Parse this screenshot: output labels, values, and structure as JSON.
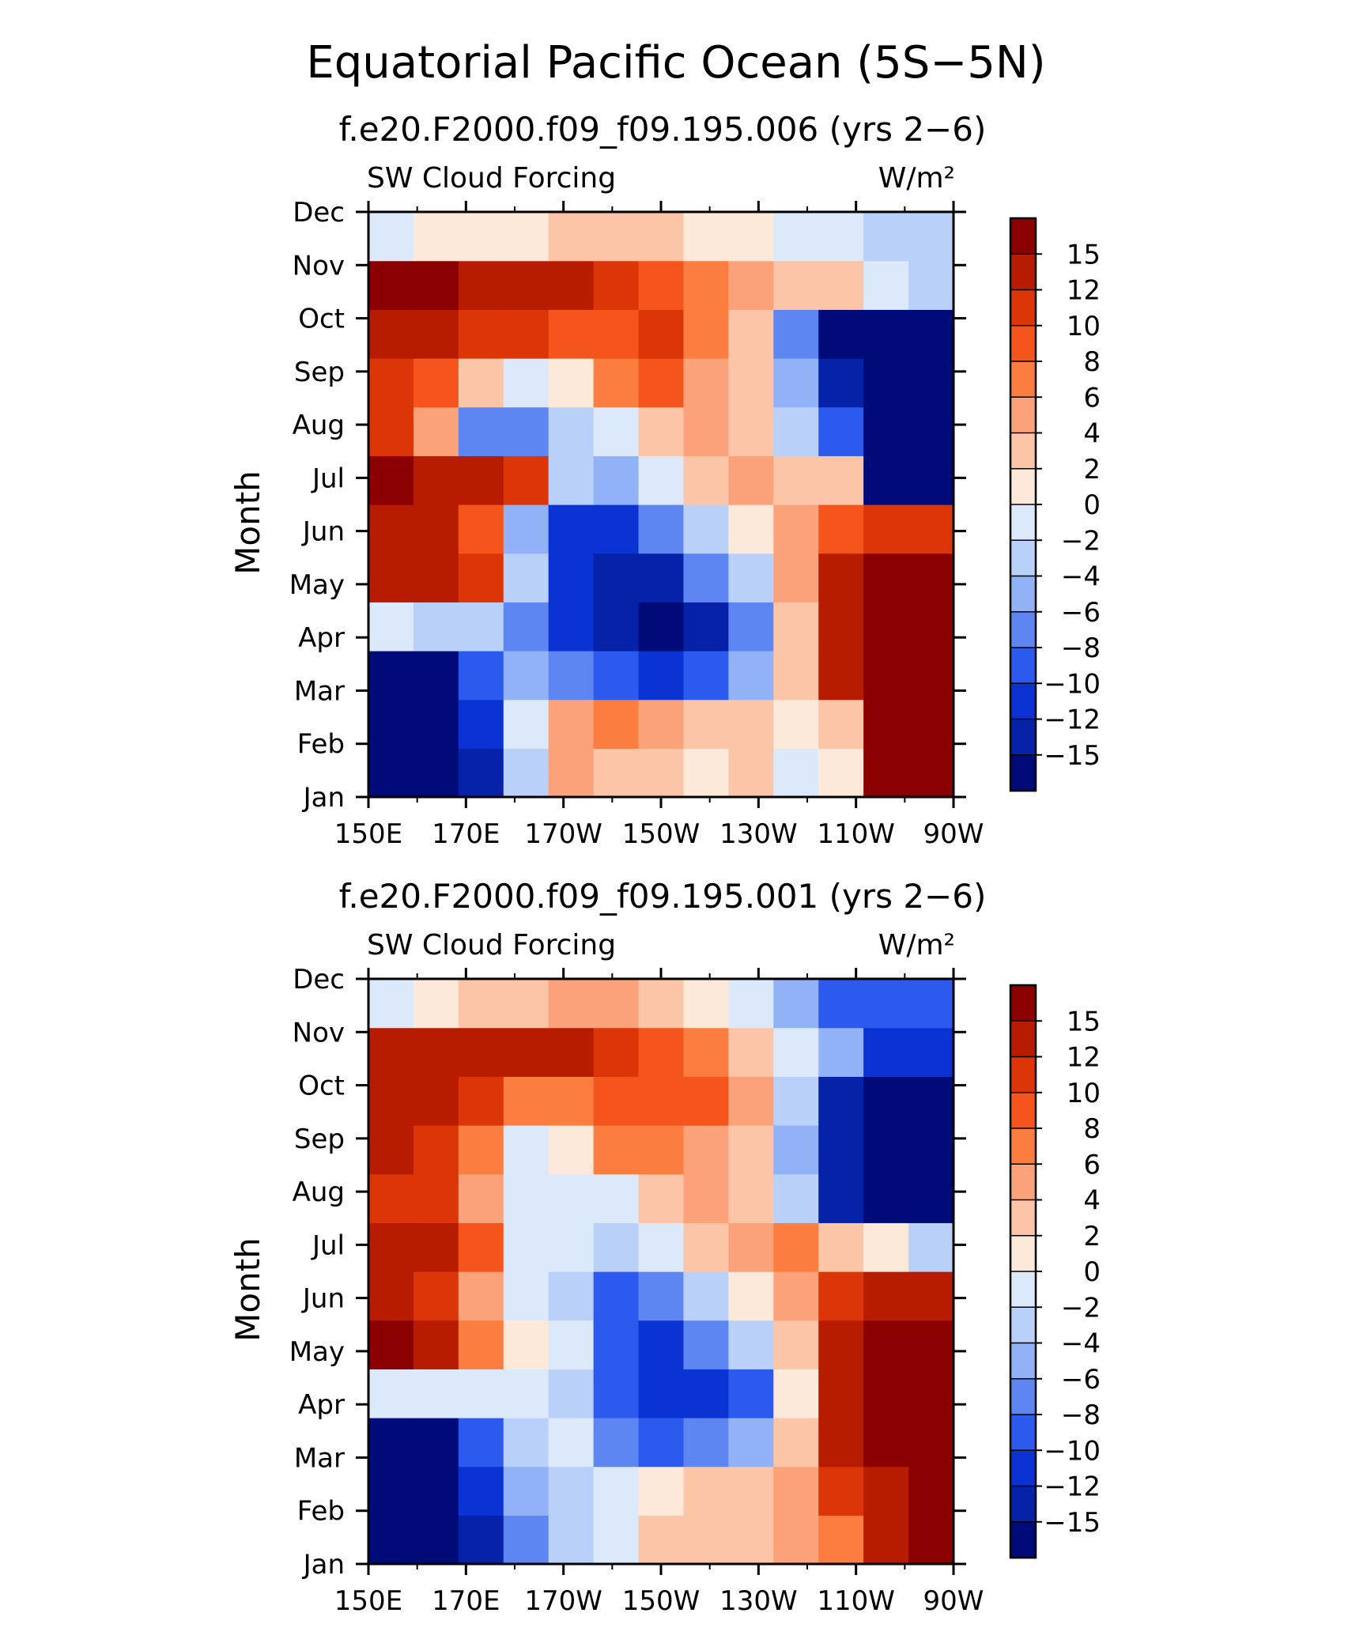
{
  "title": "Equatorial Pacific Ocean (5S−5N)",
  "chart_data": [
    {
      "type": "heatmap",
      "subtitle": "f.e20.F2000.f09_f09.195.006 (yrs 2−6)",
      "variable_label": "SW Cloud Forcing",
      "units_label": "W/m²",
      "xlabel": "",
      "ylabel": "Month",
      "x_ticks": [
        "150E",
        "170E",
        "170W",
        "150W",
        "130W",
        "110W",
        "90W"
      ],
      "x_values": [
        150,
        170,
        190,
        210,
        230,
        250,
        270
      ],
      "y_ticks": [
        "Jan",
        "Feb",
        "Mar",
        "Apr",
        "May",
        "Jun",
        "Jul",
        "Aug",
        "Sep",
        "Oct",
        "Nov",
        "Dec"
      ],
      "colorbar_levels": [
        "15",
        "12",
        "10",
        "8",
        "6",
        "4",
        "2",
        "0",
        "−2",
        "−4",
        "−6",
        "−8",
        "−10",
        "−12",
        "−15"
      ],
      "colorbar_colors": [
        "#8b0000",
        "#b81c00",
        "#dc3507",
        "#f5541c",
        "#fb7d3f",
        "#fca27a",
        "#fcc5a7",
        "#fde9d9",
        "#dbe9fb",
        "#b9d1f9",
        "#91b2f6",
        "#5e86f2",
        "#2d5aee",
        "#0b32d3",
        "#0522a8",
        "#000b7a"
      ],
      "values": [
        [
          -16,
          -16,
          -14,
          -4,
          5,
          3,
          3,
          0,
          2,
          -2,
          0,
          16,
          16
        ],
        [
          -16,
          -16,
          -12,
          -2,
          5,
          6,
          4,
          2,
          3,
          0,
          2,
          16,
          16
        ],
        [
          -16,
          -16,
          -10,
          -6,
          -8,
          -10,
          -11,
          -9,
          -5,
          2,
          14,
          16,
          16
        ],
        [
          -2,
          -3,
          -4,
          -8,
          -12,
          -14,
          -16,
          -13,
          -7,
          2,
          14,
          16,
          16
        ],
        [
          14,
          14,
          10,
          -4,
          -12,
          -14,
          -14,
          -8,
          -3,
          5,
          14,
          16,
          16
        ],
        [
          12,
          13,
          8,
          -6,
          -12,
          -12,
          -8,
          -4,
          0,
          5,
          8,
          10,
          10
        ],
        [
          16,
          14,
          12,
          10,
          -4,
          -5,
          -2,
          2,
          4,
          3,
          2,
          -16,
          -16
        ],
        [
          10,
          4,
          -7,
          -8,
          -4,
          -2,
          2,
          4,
          2,
          -4,
          -10,
          -16,
          -16
        ],
        [
          10,
          8,
          2,
          -2,
          0,
          6,
          8,
          4,
          2,
          -6,
          -14,
          -16,
          -16
        ],
        [
          14,
          12,
          10,
          10,
          8,
          8,
          10,
          6,
          2,
          -8,
          -16,
          -16,
          -16
        ],
        [
          16,
          16,
          14,
          13,
          12,
          10,
          8,
          6,
          4,
          2,
          3,
          -2,
          -4
        ],
        [
          -2,
          0,
          0,
          0,
          2,
          2,
          2,
          0,
          0,
          -2,
          -2,
          -4,
          -4
        ]
      ]
    },
    {
      "type": "heatmap",
      "subtitle": "f.e20.F2000.f09_f09.195.001 (yrs 2−6)",
      "variable_label": "SW Cloud Forcing",
      "units_label": "W/m²",
      "xlabel": "",
      "ylabel": "Month",
      "x_ticks": [
        "150E",
        "170E",
        "170W",
        "150W",
        "130W",
        "110W",
        "90W"
      ],
      "x_values": [
        150,
        170,
        190,
        210,
        230,
        250,
        270
      ],
      "y_ticks": [
        "Jan",
        "Feb",
        "Mar",
        "Apr",
        "May",
        "Jun",
        "Jul",
        "Aug",
        "Sep",
        "Oct",
        "Nov",
        "Dec"
      ],
      "colorbar_levels": [
        "15",
        "12",
        "10",
        "8",
        "6",
        "4",
        "2",
        "0",
        "−2",
        "−4",
        "−6",
        "−8",
        "−10",
        "−12",
        "−15"
      ],
      "colorbar_colors": [
        "#8b0000",
        "#b81c00",
        "#dc3507",
        "#f5541c",
        "#fb7d3f",
        "#fca27a",
        "#fcc5a7",
        "#fde9d9",
        "#dbe9fb",
        "#b9d1f9",
        "#91b2f6",
        "#5e86f2",
        "#2d5aee",
        "#0b32d3",
        "#0522a8",
        "#000b7a"
      ],
      "values": [
        [
          -16,
          -16,
          -14,
          -8,
          -4,
          -2,
          2,
          2,
          2,
          4,
          6,
          14,
          16
        ],
        [
          -16,
          -16,
          -12,
          -6,
          -4,
          -2,
          0,
          2,
          2,
          4,
          10,
          14,
          16
        ],
        [
          -16,
          -16,
          -10,
          -4,
          -2,
          -8,
          -10,
          -8,
          -6,
          2,
          12,
          16,
          16
        ],
        [
          -2,
          -2,
          -2,
          -2,
          -4,
          -10,
          -12,
          -12,
          -10,
          0,
          12,
          16,
          16
        ],
        [
          15,
          14,
          6,
          0,
          -2,
          -10,
          -12,
          -8,
          -4,
          2,
          12,
          16,
          16
        ],
        [
          12,
          10,
          4,
          -2,
          -4,
          -10,
          -8,
          -4,
          0,
          4,
          10,
          14,
          14
        ],
        [
          13,
          12,
          8,
          -2,
          -2,
          -4,
          -2,
          2,
          4,
          6,
          2,
          0,
          -4
        ],
        [
          10,
          10,
          4,
          -2,
          -2,
          -2,
          2,
          4,
          2,
          -4,
          -14,
          -16,
          -16
        ],
        [
          12,
          10,
          6,
          -2,
          0,
          6,
          6,
          4,
          2,
          -6,
          -14,
          -16,
          -16
        ],
        [
          14,
          12,
          10,
          6,
          6,
          8,
          8,
          8,
          4,
          -4,
          -14,
          -16,
          -16
        ],
        [
          14,
          14,
          13,
          12,
          12,
          10,
          8,
          6,
          2,
          -2,
          -6,
          -12,
          -12
        ],
        [
          -2,
          0,
          2,
          2,
          4,
          4,
          2,
          0,
          -2,
          -6,
          -10,
          -10,
          -10
        ]
      ]
    }
  ]
}
